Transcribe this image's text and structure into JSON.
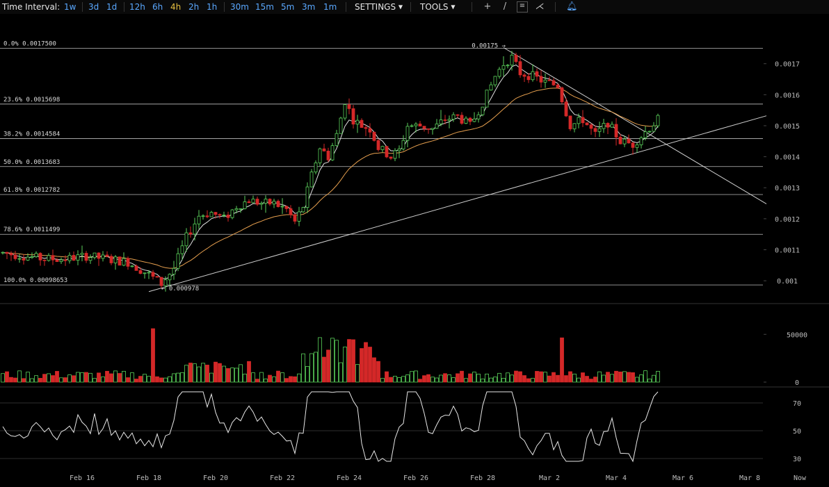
{
  "toolbar": {
    "label": "Time Interval:",
    "intervals": [
      {
        "label": "1w",
        "active": false
      },
      {
        "label": "3d",
        "active": false
      },
      {
        "label": "1d",
        "active": false
      },
      {
        "label": "12h",
        "active": false
      },
      {
        "label": "6h",
        "active": false
      },
      {
        "label": "4h",
        "active": true
      },
      {
        "label": "2h",
        "active": false
      },
      {
        "label": "1h",
        "active": false
      },
      {
        "label": "30m",
        "active": false
      },
      {
        "label": "15m",
        "active": false
      },
      {
        "label": "5m",
        "active": false
      },
      {
        "label": "3m",
        "active": false
      },
      {
        "label": "1m",
        "active": false
      }
    ],
    "settings_label": "SETTINGS",
    "tools_label": "TOOLS",
    "tool_icons": [
      "crosshair-icon",
      "line-icon",
      "fibonacci-icon",
      "pitchfork-icon",
      "alert-bell-icon"
    ]
  },
  "colors": {
    "up": "#5bd15b",
    "down": "#d42828",
    "grid": "#2a2a2a",
    "ema_short": "#e0e0e0",
    "ema_long": "#e7a04f",
    "fib_line": "#bdbdbd",
    "axis_text": "#bdbdbd"
  },
  "chart_data": [
    {
      "type": "candlestick",
      "ylim": [
        0.00096,
        0.00178
      ],
      "y_ticks": [
        {
          "value": 0.0017,
          "label": "0.0017"
        },
        {
          "value": 0.0016,
          "label": "0.0016"
        },
        {
          "value": 0.0015,
          "label": "0.0015"
        },
        {
          "value": 0.0014,
          "label": "0.0014"
        },
        {
          "value": 0.0013,
          "label": "0.0013"
        },
        {
          "value": 0.0012,
          "label": "0.0012"
        },
        {
          "value": 0.0011,
          "label": "0.0011"
        },
        {
          "value": 0.001,
          "label": "0.001"
        }
      ],
      "fib_levels": [
        {
          "label": "0.0% 0.0017500",
          "value": 0.00175
        },
        {
          "label": "23.6% 0.0015698",
          "value": 0.0015698
        },
        {
          "label": "38.2% 0.0014584",
          "value": 0.0014584
        },
        {
          "label": "50.0% 0.0013683",
          "value": 0.0013683
        },
        {
          "label": "61.8% 0.0012782",
          "value": 0.0012782
        },
        {
          "label": "78.6% 0.0011499",
          "value": 0.0011499
        },
        {
          "label": "100.0% 0.00098653",
          "value": 0.00098653
        }
      ],
      "high_marker": {
        "label": "0.00175",
        "candle": 121
      },
      "low_marker": {
        "label": "0.000978",
        "candle": 39
      },
      "trendlines": [
        {
          "from": {
            "candle": 35,
            "value": 0.000965
          },
          "to": {
            "candle": 183,
            "value": 0.001532
          }
        },
        {
          "from": {
            "candle": 120,
            "value": 0.001752
          },
          "to": {
            "candle": 183,
            "value": 0.001248
          }
        }
      ],
      "candles": [],
      "ema_short": [],
      "ema_long": []
    },
    {
      "type": "bar",
      "name": "volume",
      "ylim": [
        0,
        80000
      ],
      "y_ticks": [
        {
          "value": 50000,
          "label": "50000"
        },
        {
          "value": 0,
          "label": "0"
        }
      ],
      "values": []
    },
    {
      "type": "line",
      "name": "oscillator",
      "ylim": [
        25,
        80
      ],
      "y_ticks": [
        {
          "value": 70,
          "label": "70"
        },
        {
          "value": 50,
          "label": "50"
        },
        {
          "value": 30,
          "label": "30"
        }
      ],
      "values": []
    }
  ],
  "x_axis": {
    "labels": [
      {
        "label": "Feb 16",
        "candle": 19
      },
      {
        "label": "Feb 18",
        "candle": 35
      },
      {
        "label": "Feb 20",
        "candle": 51
      },
      {
        "label": "Feb 22",
        "candle": 67
      },
      {
        "label": "Feb 24",
        "candle": 83
      },
      {
        "label": "Feb 26",
        "candle": 99
      },
      {
        "label": "Feb 28",
        "candle": 115
      },
      {
        "label": "Mar 2",
        "candle": 131
      },
      {
        "label": "Mar 4",
        "candle": 147
      },
      {
        "label": "Mar 6",
        "candle": 163
      },
      {
        "label": "Mar 8",
        "candle": 179
      },
      {
        "label": "Now",
        "candle": 191
      }
    ]
  }
}
